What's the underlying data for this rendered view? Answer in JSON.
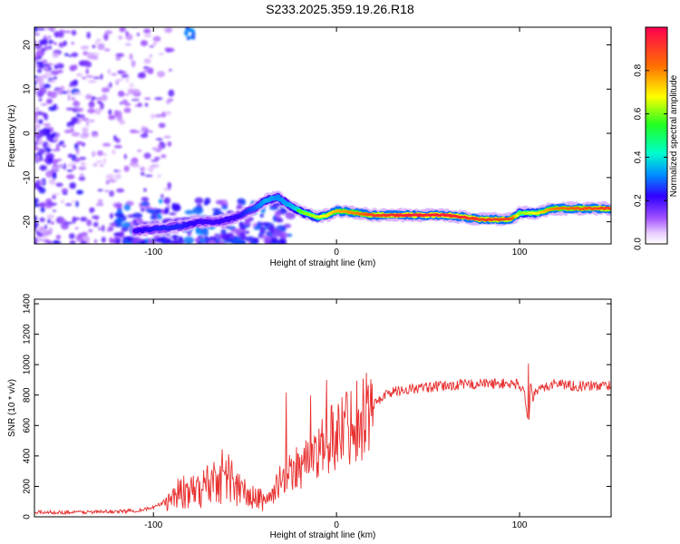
{
  "title": "S233.2025.359.19.26.R18",
  "chart_data": [
    {
      "type": "heatmap",
      "xlabel": "Height of straight line (km)",
      "ylabel": "Frequency (Hz)",
      "xlim": [
        -165,
        150
      ],
      "ylim": [
        -25,
        24
      ],
      "x_ticks": [
        -100,
        0,
        100
      ],
      "y_ticks": [
        -20,
        -10,
        0,
        10,
        20
      ],
      "colorbar": {
        "label": "Normalized spectral amplitude",
        "range": [
          0,
          1
        ],
        "ticks": [
          0.0,
          0.2,
          0.4,
          0.6,
          0.8
        ],
        "colors": [
          "#ffffff",
          "#c080ff",
          "#6000ff",
          "#0030ff",
          "#00d0ff",
          "#00ff40",
          "#ffff00",
          "#ff7000",
          "#ff0040"
        ]
      },
      "ridge": {
        "x": [
          -110,
          -95,
          -85,
          -75,
          -65,
          -55,
          -45,
          -38,
          -32,
          -25,
          -18,
          -10,
          -5,
          0,
          10,
          20,
          40,
          60,
          80,
          95,
          100,
          110,
          118,
          130,
          150
        ],
        "y": [
          -22,
          -21.5,
          -21,
          -20,
          -20,
          -19,
          -17,
          -15,
          -14.5,
          -16.5,
          -18,
          -19,
          -18.5,
          -17.5,
          -18,
          -18.5,
          -18.5,
          -18.5,
          -19.5,
          -19.5,
          -18,
          -18,
          -17,
          -17,
          -17
        ],
        "amplitude": [
          0.3,
          0.35,
          0.35,
          0.3,
          0.3,
          0.3,
          0.4,
          0.5,
          0.45,
          0.5,
          0.6,
          0.65,
          0.7,
          0.75,
          0.8,
          0.9,
          0.95,
          0.95,
          0.9,
          0.9,
          0.6,
          0.7,
          0.8,
          0.85,
          0.9
        ]
      }
    },
    {
      "type": "line",
      "xlabel": "Height of straight line (km)",
      "ylabel": "SNR (10 * v/v)",
      "xlim": [
        -165,
        150
      ],
      "ylim": [
        0,
        1430
      ],
      "x_ticks": [
        -100,
        0,
        100
      ],
      "y_ticks": [
        0,
        200,
        400,
        600,
        800,
        1000,
        1200,
        1400
      ],
      "series": [
        {
          "color": "#e83030",
          "x": [
            -165,
            -140,
            -120,
            -110,
            -100,
            -95,
            -90,
            -85,
            -80,
            -75,
            -70,
            -65,
            -60,
            -55,
            -50,
            -45,
            -40,
            -35,
            -30,
            -25,
            -22,
            -20,
            -15,
            -10,
            -5,
            0,
            5,
            10,
            15,
            20,
            25,
            30,
            40,
            50,
            60,
            70,
            80,
            90,
            100,
            103,
            105,
            106,
            107,
            110,
            115,
            120,
            130,
            140,
            150
          ],
          "y": [
            30,
            30,
            35,
            40,
            60,
            90,
            130,
            170,
            150,
            180,
            220,
            260,
            280,
            200,
            150,
            120,
            110,
            140,
            260,
            300,
            340,
            330,
            380,
            420,
            470,
            550,
            600,
            640,
            680,
            730,
            790,
            820,
            840,
            850,
            860,
            870,
            875,
            875,
            870,
            800,
            600,
            900,
            780,
            830,
            860,
            880,
            860,
            860,
            865
          ]
        }
      ]
    }
  ]
}
